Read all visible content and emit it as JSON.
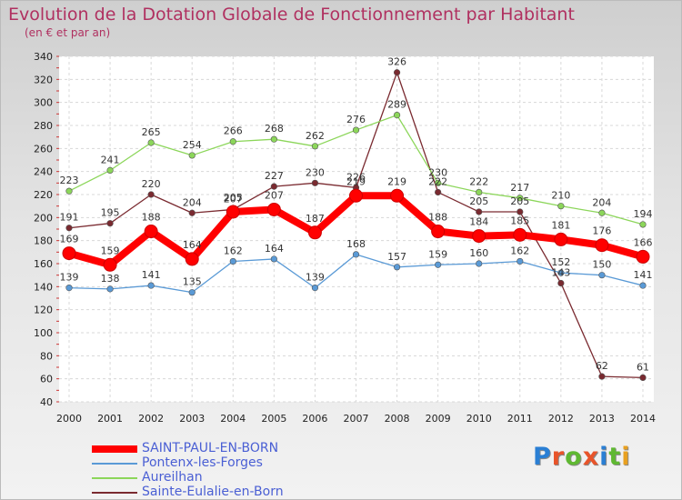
{
  "header": {
    "title": "Evolution de la Dotation Globale de Fonctionnement par Habitant",
    "subtitle": "(en € et par an)"
  },
  "logo": {
    "text": "Proxiti",
    "letter_colors": [
      "#2a7fd4",
      "#e8542a",
      "#5fb832",
      "#e8542a",
      "#2a7fd4",
      "#5fb832",
      "#e8a020"
    ]
  },
  "chart_data": {
    "type": "line",
    "title": "Evolution de la Dotation Globale de Fonctionnement par Habitant",
    "subtitle": "(en € et par an)",
    "xlabel": "",
    "ylabel": "",
    "ylim": [
      40,
      340
    ],
    "yticks": [
      40,
      60,
      80,
      100,
      120,
      140,
      160,
      180,
      200,
      220,
      240,
      260,
      280,
      300,
      320,
      340
    ],
    "grid": true,
    "legend": "bottom-left",
    "categories": [
      "2000",
      "2001",
      "2002",
      "2003",
      "2004",
      "2005",
      "2006",
      "2007",
      "2008",
      "2009",
      "2010",
      "2011",
      "2012",
      "2013",
      "2014"
    ],
    "series": [
      {
        "name": "Sainte-Eulalie-en-Born",
        "color": "#7a2a30",
        "values": [
          191,
          195,
          220,
          204,
          207,
          227,
          230,
          226,
          326,
          222,
          205,
          205,
          143,
          62,
          61
        ],
        "labels": [
          "191",
          "195",
          "220",
          "204",
          "207",
          "227",
          "230",
          "226",
          "326",
          "222",
          "205",
          "205",
          "143",
          "62",
          "61"
        ]
      },
      {
        "name": "Aureilhan",
        "color": "#8cd65a",
        "values": [
          223,
          241,
          265,
          254,
          266,
          268,
          262,
          276,
          289,
          230,
          222,
          217,
          210,
          204,
          194
        ],
        "labels": [
          "223",
          "241",
          "265",
          "254",
          "266",
          "268",
          "262",
          "276",
          "289",
          "230",
          "222",
          "217",
          "210",
          "204",
          "194"
        ]
      },
      {
        "name": "Pontenx-les-Forges",
        "color": "#5a9ad6",
        "values": [
          139,
          138,
          141,
          135,
          162,
          164,
          139,
          168,
          157,
          159,
          160,
          162,
          152,
          150,
          141
        ],
        "labels": [
          "139",
          "138",
          "141",
          "135",
          "162",
          "164",
          "139",
          "168",
          "157",
          "159",
          "160",
          "162",
          "152",
          "150",
          "141"
        ]
      },
      {
        "name": "SAINT-PAUL-EN-BORN",
        "color": "#ff0000",
        "values": [
          169,
          159,
          188,
          164,
          205,
          207,
          187,
          219,
          219,
          188,
          184,
          185,
          181,
          176,
          166
        ],
        "labels": [
          "169",
          "159",
          "188",
          "164",
          "205",
          "207",
          "187",
          "219",
          "219",
          "188",
          "184",
          "185",
          "181",
          "176",
          "166"
        ]
      }
    ],
    "legend_entries": [
      {
        "name": "SAINT-PAUL-EN-BORN",
        "color": "#ff0000"
      },
      {
        "name": "Pontenx-les-Forges",
        "color": "#5a9ad6"
      },
      {
        "name": "Aureilhan",
        "color": "#8cd65a"
      },
      {
        "name": "Sainte-Eulalie-en-Born",
        "color": "#7a2a30"
      }
    ]
  }
}
